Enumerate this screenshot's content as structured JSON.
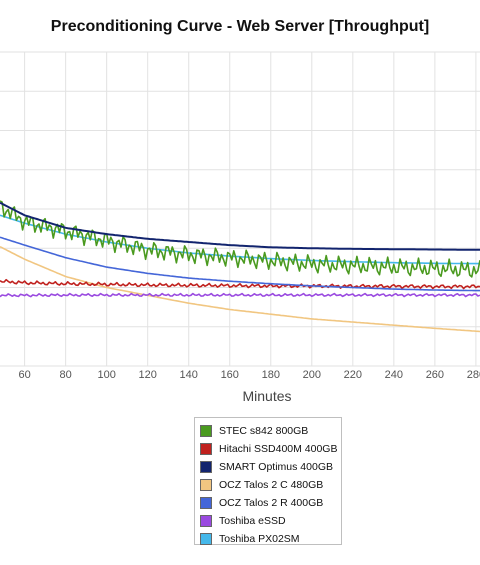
{
  "chart_data": {
    "type": "line",
    "title": "Preconditioning Curve - Web Server [Throughput]",
    "xlabel": "Minutes",
    "ylabel": "",
    "x_ticks": [
      60,
      80,
      100,
      120,
      140,
      160,
      180,
      200,
      220,
      240,
      260,
      280
    ],
    "xlim": [
      48,
      282
    ],
    "ylim": [
      0,
      1
    ],
    "grid": true,
    "legend_position": "bottom",
    "series": [
      {
        "name": "STEC s842 800GB",
        "color": "#4a9a1f",
        "x": [
          48,
          60,
          80,
          100,
          120,
          140,
          160,
          180,
          200,
          220,
          240,
          260,
          282
        ],
        "values": [
          0.51,
          0.46,
          0.43,
          0.4,
          0.37,
          0.355,
          0.345,
          0.335,
          0.325,
          0.32,
          0.315,
          0.31,
          0.305
        ],
        "oscillation": 0.02
      },
      {
        "name": "Hitachi SSD400M 400GB",
        "color": "#c0211e",
        "x": [
          48,
          60,
          80,
          100,
          120,
          140,
          160,
          180,
          200,
          220,
          240,
          260,
          282
        ],
        "values": [
          0.27,
          0.265,
          0.262,
          0.26,
          0.258,
          0.257,
          0.256,
          0.255,
          0.255,
          0.254,
          0.254,
          0.253,
          0.253
        ],
        "oscillation": 0.004
      },
      {
        "name": "SMART Optimus 400GB",
        "color": "#12246e",
        "x": [
          48,
          60,
          80,
          100,
          120,
          140,
          160,
          180,
          200,
          220,
          240,
          260,
          282
        ],
        "values": [
          0.52,
          0.48,
          0.44,
          0.42,
          0.405,
          0.395,
          0.385,
          0.378,
          0.375,
          0.373,
          0.372,
          0.371,
          0.37
        ],
        "oscillation": 0
      },
      {
        "name": "OCZ Talos 2 C 480GB",
        "color": "#f1c681",
        "x": [
          48,
          60,
          80,
          100,
          120,
          140,
          160,
          180,
          200,
          220,
          240,
          260,
          282
        ],
        "values": [
          0.38,
          0.34,
          0.285,
          0.25,
          0.225,
          0.2,
          0.18,
          0.165,
          0.15,
          0.14,
          0.13,
          0.12,
          0.11
        ],
        "oscillation": 0
      },
      {
        "name": "OCZ Talos 2 R 400GB",
        "color": "#4466d8",
        "x": [
          48,
          60,
          80,
          100,
          120,
          140,
          160,
          180,
          200,
          220,
          240,
          260,
          282
        ],
        "values": [
          0.41,
          0.385,
          0.345,
          0.315,
          0.295,
          0.28,
          0.27,
          0.262,
          0.255,
          0.25,
          0.245,
          0.242,
          0.24
        ],
        "oscillation": 0
      },
      {
        "name": "Toshiba eSSD",
        "color": "#9a4ae0",
        "x": [
          48,
          60,
          80,
          100,
          120,
          140,
          160,
          180,
          200,
          220,
          240,
          260,
          282
        ],
        "values": [
          0.225,
          0.225,
          0.226,
          0.226,
          0.226,
          0.226,
          0.226,
          0.226,
          0.226,
          0.226,
          0.226,
          0.226,
          0.226
        ],
        "oscillation": 0.003
      },
      {
        "name": "Toshiba PX02SM",
        "color": "#45b8ea",
        "x": [
          48,
          60,
          80,
          100,
          120,
          140,
          160,
          180,
          200,
          220,
          240,
          260,
          282
        ],
        "values": [
          0.48,
          0.455,
          0.42,
          0.395,
          0.375,
          0.36,
          0.35,
          0.342,
          0.336,
          0.332,
          0.329,
          0.327,
          0.326
        ],
        "oscillation": 0
      }
    ]
  }
}
